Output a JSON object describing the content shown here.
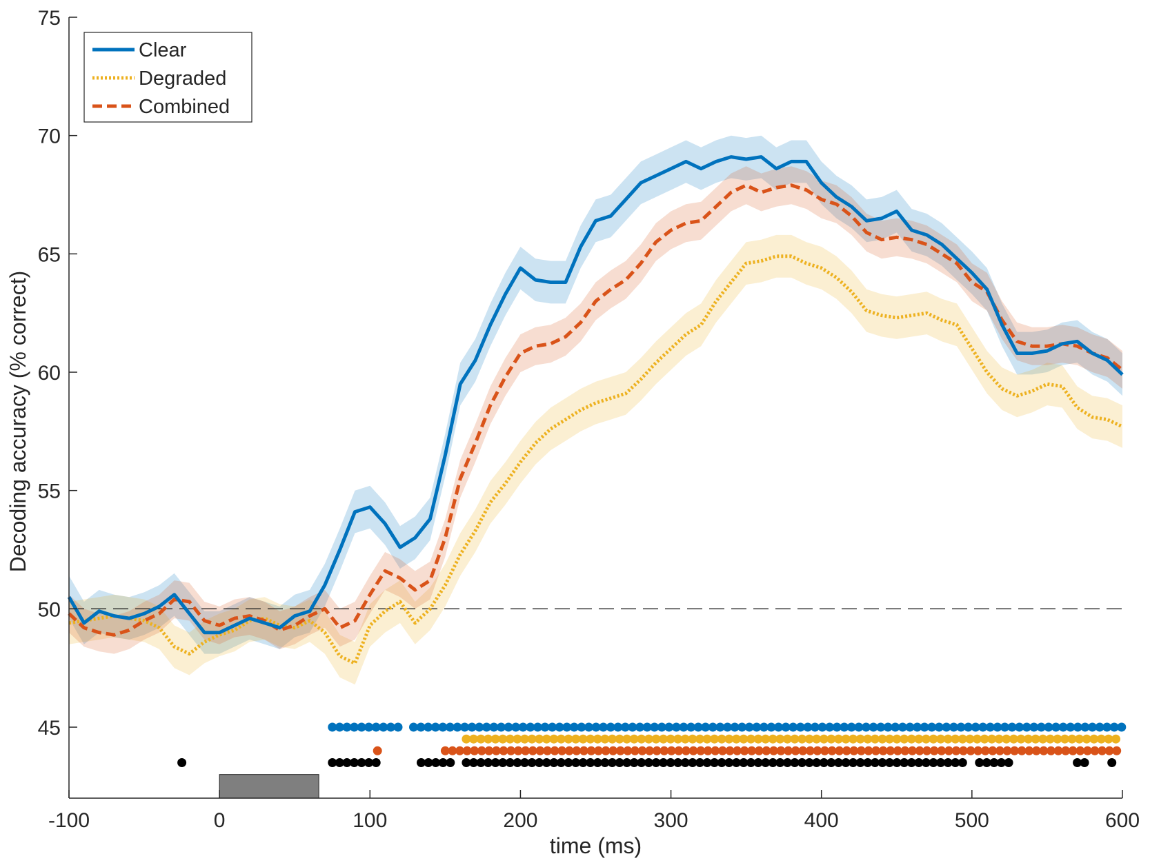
{
  "chart_data": {
    "type": "line",
    "title": "",
    "xlabel": "time (ms)",
    "ylabel": "Decoding accuracy (% correct)",
    "xlim": [
      -100,
      600
    ],
    "ylim": [
      42,
      75
    ],
    "xticks": [
      "-100",
      "0",
      "100",
      "200",
      "300",
      "400",
      "500",
      "600"
    ],
    "yticks": [
      "45",
      "50",
      "55",
      "60",
      "65",
      "70",
      "75"
    ],
    "chance_level": 50,
    "legend_position": "top-left",
    "stimulus_bar": {
      "start": 0,
      "end": 66,
      "color": "#7f7f7f"
    },
    "colors": {
      "Clear": "#0072bd",
      "Degraded": "#edb120",
      "Combined": "#d95319",
      "Any": "#000000"
    },
    "series": [
      {
        "name": "Clear",
        "style": "solid",
        "band": 0.9,
        "x": [
          -100,
          -90,
          -80,
          -70,
          -60,
          -50,
          -40,
          -30,
          -20,
          -10,
          0,
          10,
          20,
          30,
          40,
          50,
          60,
          70,
          80,
          90,
          100,
          110,
          120,
          130,
          140,
          150,
          160,
          170,
          180,
          190,
          200,
          210,
          220,
          230,
          240,
          250,
          260,
          270,
          280,
          290,
          300,
          310,
          320,
          330,
          340,
          350,
          360,
          370,
          380,
          390,
          400,
          410,
          420,
          430,
          440,
          450,
          460,
          470,
          480,
          490,
          500,
          510,
          520,
          530,
          540,
          550,
          560,
          570,
          580,
          590,
          600
        ],
        "values": [
          50.5,
          49.4,
          49.9,
          49.7,
          49.6,
          49.8,
          50.1,
          50.6,
          49.8,
          49.0,
          49.0,
          49.3,
          49.6,
          49.4,
          49.2,
          49.7,
          49.9,
          51.0,
          52.5,
          54.1,
          54.3,
          53.6,
          52.6,
          53.0,
          53.8,
          56.5,
          59.5,
          60.5,
          62.0,
          63.3,
          64.4,
          63.9,
          63.8,
          63.8,
          65.3,
          66.4,
          66.6,
          67.3,
          68.0,
          68.3,
          68.6,
          68.9,
          68.6,
          68.9,
          69.1,
          69.0,
          69.1,
          68.6,
          68.9,
          68.9,
          68.0,
          67.4,
          67.0,
          66.4,
          66.5,
          66.8,
          66.0,
          65.8,
          65.4,
          64.8,
          64.2,
          63.5,
          62.0,
          60.8,
          60.8,
          60.9,
          61.2,
          61.3,
          60.8,
          60.5,
          59.9
        ]
      },
      {
        "name": "Degraded",
        "style": "dotted",
        "band": 0.9,
        "x": [
          -100,
          -90,
          -80,
          -70,
          -60,
          -50,
          -40,
          -30,
          -20,
          -10,
          0,
          10,
          20,
          30,
          40,
          50,
          60,
          70,
          80,
          90,
          100,
          110,
          120,
          130,
          140,
          150,
          160,
          170,
          180,
          190,
          200,
          210,
          220,
          230,
          240,
          250,
          260,
          270,
          280,
          290,
          300,
          310,
          320,
          330,
          340,
          350,
          360,
          370,
          380,
          390,
          400,
          410,
          420,
          430,
          440,
          450,
          460,
          470,
          480,
          490,
          500,
          510,
          520,
          530,
          540,
          550,
          560,
          570,
          580,
          590,
          600
        ],
        "values": [
          49.4,
          49.5,
          49.6,
          49.7,
          49.6,
          49.5,
          49.2,
          48.4,
          48.1,
          48.6,
          48.9,
          49.1,
          49.5,
          49.6,
          49.3,
          49.2,
          49.5,
          49.0,
          48.0,
          47.7,
          49.3,
          49.9,
          50.3,
          49.4,
          50.0,
          51.0,
          52.3,
          53.3,
          54.5,
          55.3,
          56.2,
          57.0,
          57.6,
          58.0,
          58.4,
          58.7,
          58.9,
          59.1,
          59.7,
          60.4,
          61.0,
          61.6,
          62.0,
          63.0,
          63.8,
          64.6,
          64.7,
          64.9,
          64.9,
          64.6,
          64.4,
          64.0,
          63.4,
          62.6,
          62.4,
          62.3,
          62.4,
          62.5,
          62.2,
          62.0,
          61.0,
          60.0,
          59.3,
          59.0,
          59.2,
          59.5,
          59.4,
          58.5,
          58.1,
          58.0,
          57.7
        ]
      },
      {
        "name": "Combined",
        "style": "dashed",
        "band": 0.8,
        "x": [
          -100,
          -90,
          -80,
          -70,
          -60,
          -50,
          -40,
          -30,
          -20,
          -10,
          0,
          10,
          20,
          30,
          40,
          50,
          60,
          70,
          80,
          90,
          100,
          110,
          120,
          130,
          140,
          150,
          160,
          170,
          180,
          190,
          200,
          210,
          220,
          230,
          240,
          250,
          260,
          270,
          280,
          290,
          300,
          310,
          320,
          330,
          340,
          350,
          360,
          370,
          380,
          390,
          400,
          410,
          420,
          430,
          440,
          450,
          460,
          470,
          480,
          490,
          500,
          510,
          520,
          530,
          540,
          550,
          560,
          570,
          580,
          590,
          600
        ],
        "values": [
          49.8,
          49.2,
          49.0,
          48.9,
          49.1,
          49.5,
          49.8,
          50.4,
          50.3,
          49.5,
          49.3,
          49.6,
          49.7,
          49.5,
          49.1,
          49.3,
          49.7,
          50.0,
          49.2,
          49.5,
          50.6,
          51.6,
          51.3,
          50.8,
          51.2,
          53.0,
          55.5,
          57.0,
          58.6,
          59.8,
          60.8,
          61.1,
          61.2,
          61.5,
          62.1,
          63.0,
          63.5,
          63.9,
          64.6,
          65.5,
          66.0,
          66.3,
          66.4,
          67.0,
          67.6,
          67.9,
          67.6,
          67.8,
          67.9,
          67.7,
          67.3,
          67.1,
          66.6,
          65.9,
          65.6,
          65.7,
          65.6,
          65.4,
          65.0,
          64.6,
          63.8,
          63.4,
          62.2,
          61.3,
          61.1,
          61.1,
          61.2,
          61.1,
          60.8,
          60.6,
          60.1
        ]
      }
    ],
    "significance_rows": [
      {
        "name": "Clear",
        "y": 45.0,
        "ranges": [
          [
            75,
            122
          ],
          [
            129,
            600
          ]
        ]
      },
      {
        "name": "Degraded",
        "y": 44.5,
        "ranges": [
          [
            164,
            600
          ]
        ]
      },
      {
        "name": "Combined",
        "y": 44.0,
        "ranges": [
          [
            105,
            105
          ],
          [
            150,
            600
          ]
        ]
      },
      {
        "name": "Any",
        "y": 43.5,
        "ranges": [
          [
            -25,
            -25
          ],
          [
            75,
            105
          ],
          [
            134,
            155
          ],
          [
            164,
            497
          ],
          [
            505,
            529
          ],
          [
            570,
            575
          ],
          [
            593,
            593
          ]
        ]
      }
    ],
    "significance_step_ms": 4.85
  }
}
